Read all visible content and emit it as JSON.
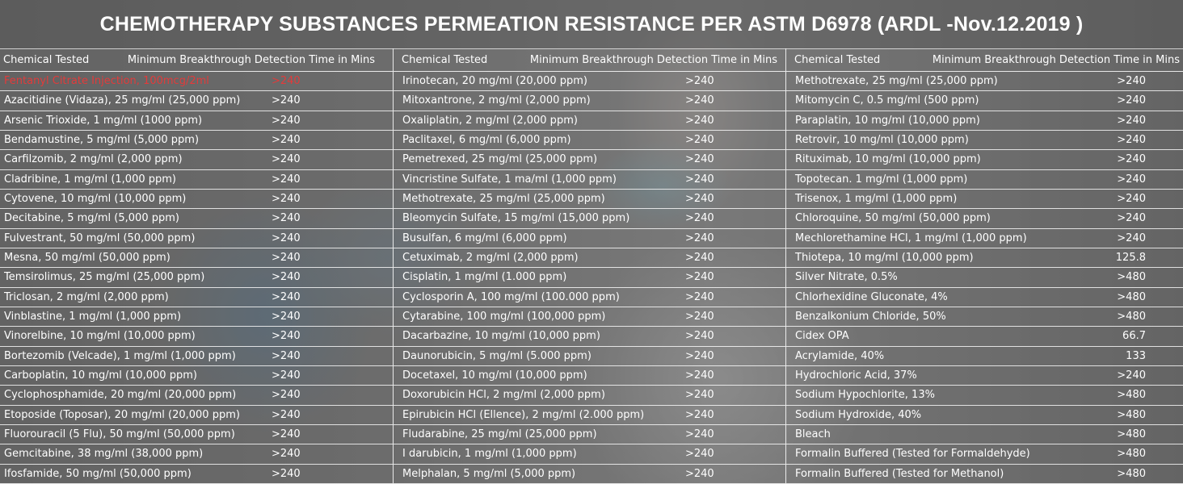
{
  "title": "CHEMOTHERAPY SUBSTANCES PERMEATION RESISTANCE PER ASTM D6978 (ARDL -Nov.12.2019 )",
  "header": {
    "chemical": "Chemical Tested",
    "time": "Minimum Breakthrough Detection Time in Mins"
  },
  "colors": {
    "highlight": "#e23b3b",
    "text": "#ffffff"
  },
  "columns": [
    {
      "rows": [
        {
          "name": "Fentanyl Citrate Injection, 100mcg/2ml",
          "value": ">240",
          "highlight": true
        },
        {
          "name": "Azacitidine (Vidaza), 25 mg/ml (25,000 ppm)",
          "value": ">240"
        },
        {
          "name": "Arsenic Trioxide, 1 mg/ml (1000 ppm)",
          "value": ">240"
        },
        {
          "name": "Bendamustine, 5 mg/ml (5,000 ppm)",
          "value": ">240"
        },
        {
          "name": "Carfilzomib, 2 mg/ml (2,000 ppm)",
          "value": ">240"
        },
        {
          "name": "Cladribine, 1 mg/ml (1,000 ppm)",
          "value": ">240"
        },
        {
          "name": "Cytovene, 10 mg/ml (10,000 ppm)",
          "value": ">240"
        },
        {
          "name": "Decitabine, 5 mg/ml (5,000 ppm)",
          "value": ">240"
        },
        {
          "name": "Fulvestrant, 50 mg/ml (50,000 ppm)",
          "value": ">240"
        },
        {
          "name": "Mesna, 50 mg/ml (50,000 ppm)",
          "value": ">240"
        },
        {
          "name": "Temsirolimus, 25 mg/ml (25,000 ppm)",
          "value": ">240"
        },
        {
          "name": "Triclosan, 2 mg/ml (2,000 ppm)",
          "value": ">240"
        },
        {
          "name": "Vinblastine, 1 mg/ml (1,000 ppm)",
          "value": ">240"
        },
        {
          "name": "Vinorelbine, 10 mg/ml (10,000 ppm)",
          "value": ">240"
        },
        {
          "name": "Bortezomib (Velcade), 1 mg/ml (1,000 ppm)",
          "value": ">240"
        },
        {
          "name": "Carboplatin, 10 mg/ml (10,000 ppm)",
          "value": ">240"
        },
        {
          "name": "Cyclophosphamide, 20 mg/ml (20,000 ppm)",
          "value": ">240"
        },
        {
          "name": "Etoposide (Toposar), 20 mg/ml (20,000 ppm)",
          "value": ">240"
        },
        {
          "name": "Fluorouracil (5 Flu), 50 mg/ml (50,000 ppm)",
          "value": ">240"
        },
        {
          "name": "Gemcitabine, 38 mg/ml (38,000 ppm)",
          "value": ">240"
        },
        {
          "name": "Ifosfamide, 50 mg/ml (50,000 ppm)",
          "value": ">240"
        }
      ]
    },
    {
      "rows": [
        {
          "name": "Irinotecan, 20 mg/ml (20,000 ppm)",
          "value": ">240"
        },
        {
          "name": "Mitoxantrone, 2 mg/ml (2,000 ppm)",
          "value": ">240"
        },
        {
          "name": "Oxaliplatin, 2 mg/ml (2,000 ppm)",
          "value": ">240"
        },
        {
          "name": "Paclitaxel, 6 mg/ml (6,000 ppm)",
          "value": ">240"
        },
        {
          "name": "Pemetrexed, 25 mg/ml (25,000 ppm)",
          "value": ">240"
        },
        {
          "name": "Vincristine Sulfate, 1 ma/ml (1,000 ppm)",
          "value": ">240"
        },
        {
          "name": "Methotrexate, 25 mg/ml (25,000 ppm)",
          "value": ">240"
        },
        {
          "name": "Bleomycin Sulfate, 15 mg/ml (15,000 ppm)",
          "value": ">240"
        },
        {
          "name": "Busulfan, 6 mg/ml (6,000 ppm)",
          "value": ">240"
        },
        {
          "name": "Cetuximab, 2 mg/ml (2,000 ppm)",
          "value": ">240"
        },
        {
          "name": "Cisplatin, 1 mg/ml (1.000 ppm)",
          "value": ">240"
        },
        {
          "name": "Cyclosporin A, 100 mg/ml (100.000 ppm)",
          "value": ">240"
        },
        {
          "name": "Cytarabine, 100 mg/ml (100,000 ppm)",
          "value": ">240"
        },
        {
          "name": "Dacarbazine, 10 mg/ml (10,000 ppm)",
          "value": ">240"
        },
        {
          "name": "Daunorubicin, 5 mg/ml (5.000 ppm)",
          "value": ">240"
        },
        {
          "name": "Docetaxel, 10 mg/ml (10,000 ppm)",
          "value": ">240"
        },
        {
          "name": "Doxorubicin HCl, 2 mg/ml (2,000 ppm)",
          "value": ">240"
        },
        {
          "name": "Epirubicin HCl (Ellence), 2 mg/ml (2.000 ppm)",
          "value": ">240"
        },
        {
          "name": "Fludarabine, 25 mg/ml (25,000 ppm)",
          "value": ">240"
        },
        {
          "name": "I darubicin, 1 mg/ml (1,000 ppm)",
          "value": ">240"
        },
        {
          "name": "Melphalan, 5 mg/ml (5,000 ppm)",
          "value": ">240"
        }
      ]
    },
    {
      "rows": [
        {
          "name": "Methotrexate, 25 mg/ml (25,000 ppm)",
          "value": ">240"
        },
        {
          "name": "Mitomycin C, 0.5 mg/ml (500 ppm)",
          "value": ">240"
        },
        {
          "name": "Paraplatin, 10 mg/ml (10,000 ppm)",
          "value": ">240"
        },
        {
          "name": "Retrovir, 10 mg/ml (10,000 ppm)",
          "value": ">240"
        },
        {
          "name": "Rituximab, 10 mg/ml (10,000 ppm)",
          "value": ">240"
        },
        {
          "name": "Topotecan. 1 mg/ml (1,000 ppm)",
          "value": ">240"
        },
        {
          "name": "Trisenox, 1 mg/ml (1,000 ppm)",
          "value": ">240"
        },
        {
          "name": "Chloroquine, 50 mg/ml (50,000 ppm)",
          "value": ">240"
        },
        {
          "name": "Mechlorethamine HCl, 1 mg/ml (1,000 ppm)",
          "value": ">240"
        },
        {
          "name": "Thiotepa, 10 mg/ml (10,000 ppm)",
          "value": "125.8"
        },
        {
          "name": "Silver Nitrate, 0.5%",
          "value": ">480"
        },
        {
          "name": "Chlorhexidine Gluconate, 4%",
          "value": ">480"
        },
        {
          "name": "Benzalkonium Chloride, 50%",
          "value": ">480"
        },
        {
          "name": "Cidex OPA",
          "value": "66.7"
        },
        {
          "name": "Acrylamide, 40%",
          "value": "133"
        },
        {
          "name": "Hydrochloric Acid, 37%",
          "value": ">240"
        },
        {
          "name": "Sodium Hypochlorite, 13%",
          "value": ">480"
        },
        {
          "name": "Sodium Hydroxide, 40%",
          "value": ">480"
        },
        {
          "name": "Bleach",
          "value": ">480"
        },
        {
          "name": "Formalin Buffered (Tested for Formaldehyde)",
          "value": ">480"
        },
        {
          "name": "Formalin Buffered (Tested for Methanol)",
          "value": ">480"
        }
      ]
    }
  ]
}
